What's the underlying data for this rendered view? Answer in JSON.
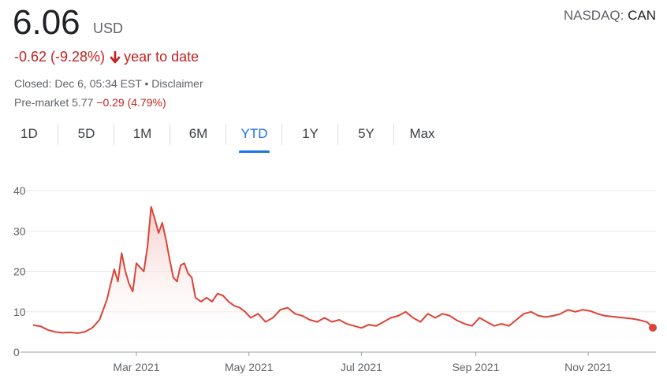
{
  "quote": {
    "price": "6.06",
    "currency": "USD",
    "exchange_prefix": "NASDAQ:",
    "ticker": "CAN",
    "change": "-0.62 (-9.28%)",
    "change_period": "year to date",
    "closed_text": "Closed: Dec 6, 05:34 EST • ",
    "disclaimer": "Disclaimer",
    "premarket_label": "Pre-market 5.77",
    "premarket_change": "−0.29 (4.79%)",
    "arrow_icon": "arrow-down-icon",
    "negative_color": "#c5221f"
  },
  "tabs": [
    "1D",
    "5D",
    "1M",
    "6M",
    "YTD",
    "1Y",
    "5Y",
    "Max"
  ],
  "active_tab": "YTD",
  "chart_data": {
    "type": "line",
    "line_color": "#db4437",
    "fill": "gradient",
    "ylim": [
      0,
      40
    ],
    "yticks": [
      0,
      10,
      20,
      30,
      40
    ],
    "ytick_labels": [
      "0",
      "10",
      "20",
      "30",
      "40"
    ],
    "xlim": [
      "2021-01-04",
      "2021-12-06"
    ],
    "xticks": [
      "2021-03-01",
      "2021-05-01",
      "2021-07-01",
      "2021-09-01",
      "2021-11-01"
    ],
    "xtick_labels": [
      "Mar 2021",
      "May 2021",
      "Jul 2021",
      "Sep 2021",
      "Nov 2021"
    ],
    "grid": true,
    "x": [
      "2021-01-04",
      "2021-01-08",
      "2021-01-12",
      "2021-01-16",
      "2021-01-20",
      "2021-01-24",
      "2021-01-28",
      "2021-02-01",
      "2021-02-05",
      "2021-02-09",
      "2021-02-13",
      "2021-02-17",
      "2021-02-19",
      "2021-02-21",
      "2021-02-23",
      "2021-02-25",
      "2021-02-27",
      "2021-03-01",
      "2021-03-03",
      "2021-03-05",
      "2021-03-07",
      "2021-03-09",
      "2021-03-11",
      "2021-03-13",
      "2021-03-15",
      "2021-03-17",
      "2021-03-19",
      "2021-03-21",
      "2021-03-23",
      "2021-03-25",
      "2021-03-27",
      "2021-03-29",
      "2021-03-31",
      "2021-04-02",
      "2021-04-05",
      "2021-04-08",
      "2021-04-11",
      "2021-04-14",
      "2021-04-17",
      "2021-04-20",
      "2021-04-23",
      "2021-04-26",
      "2021-04-29",
      "2021-05-02",
      "2021-05-06",
      "2021-05-10",
      "2021-05-14",
      "2021-05-18",
      "2021-05-22",
      "2021-05-26",
      "2021-05-30",
      "2021-06-03",
      "2021-06-07",
      "2021-06-11",
      "2021-06-15",
      "2021-06-19",
      "2021-06-23",
      "2021-06-27",
      "2021-07-01",
      "2021-07-05",
      "2021-07-09",
      "2021-07-13",
      "2021-07-17",
      "2021-07-21",
      "2021-07-25",
      "2021-07-29",
      "2021-08-02",
      "2021-08-06",
      "2021-08-10",
      "2021-08-14",
      "2021-08-18",
      "2021-08-22",
      "2021-08-26",
      "2021-08-30",
      "2021-09-03",
      "2021-09-07",
      "2021-09-11",
      "2021-09-15",
      "2021-09-19",
      "2021-09-23",
      "2021-09-27",
      "2021-10-01",
      "2021-10-05",
      "2021-10-09",
      "2021-10-13",
      "2021-10-17",
      "2021-10-21",
      "2021-10-25",
      "2021-10-29",
      "2021-11-02",
      "2021-11-06",
      "2021-11-10",
      "2021-11-14",
      "2021-11-18",
      "2021-11-22",
      "2021-11-26",
      "2021-11-30",
      "2021-12-03",
      "2021-12-06"
    ],
    "y": [
      6.7,
      6.4,
      5.5,
      5.0,
      4.8,
      4.9,
      4.7,
      5.0,
      6.0,
      8.0,
      13.0,
      20.5,
      17.5,
      24.5,
      20.0,
      17.0,
      15.0,
      22.0,
      21.0,
      20.0,
      26.0,
      36.0,
      33.0,
      29.5,
      32.0,
      28.0,
      23.0,
      18.5,
      17.5,
      21.5,
      22.0,
      19.5,
      18.5,
      13.5,
      12.5,
      13.5,
      12.5,
      14.5,
      14.0,
      12.5,
      11.5,
      11.0,
      10.0,
      8.5,
      9.5,
      7.5,
      8.5,
      10.5,
      11.0,
      9.5,
      9.0,
      8.0,
      7.5,
      8.5,
      7.5,
      8.0,
      7.0,
      6.5,
      6.0,
      6.8,
      6.5,
      7.5,
      8.5,
      9.0,
      10.0,
      8.5,
      7.5,
      9.5,
      8.5,
      9.5,
      9.0,
      7.8,
      7.0,
      6.5,
      8.5,
      7.5,
      6.5,
      7.0,
      6.5,
      8.0,
      9.5,
      10.0,
      9.0,
      8.7,
      9.0,
      9.5,
      10.5,
      10.0,
      10.5,
      10.2,
      9.5,
      9.0,
      8.8,
      8.6,
      8.4,
      8.2,
      7.8,
      7.4,
      6.06
    ]
  }
}
